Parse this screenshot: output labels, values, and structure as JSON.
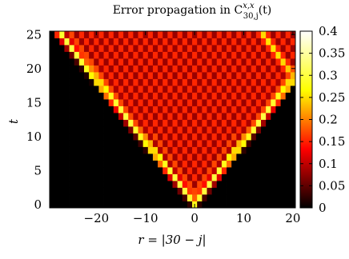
{
  "chart_data": {
    "type": "heatmap",
    "title": "Error propagation in C",
    "title_superscript": "x,x",
    "title_subscript": "30,j",
    "title_suffix": "(t)",
    "xlabel": "r = |30 − j|",
    "ylabel": "t",
    "xlim": [
      -29.5,
      20.5
    ],
    "ylim": [
      -0.5,
      25.5
    ],
    "x_ticks": [
      {
        "value": -20,
        "label": "−20"
      },
      {
        "value": -10,
        "label": "−10"
      },
      {
        "value": 0,
        "label": "0"
      },
      {
        "value": 10,
        "label": "10"
      },
      {
        "value": 20,
        "label": "20"
      }
    ],
    "y_ticks": [
      {
        "value": 0,
        "label": "0"
      },
      {
        "value": 5,
        "label": "5"
      },
      {
        "value": 10,
        "label": "10"
      },
      {
        "value": 15,
        "label": "15"
      },
      {
        "value": 20,
        "label": "20"
      },
      {
        "value": 25,
        "label": "25"
      }
    ],
    "x_range": [
      -29,
      20
    ],
    "y_range": [
      0,
      25
    ],
    "colorbar": {
      "min": 0,
      "max": 0.4,
      "ticks": [
        {
          "value": 0,
          "label": "0"
        },
        {
          "value": 0.05,
          "label": "0.05"
        },
        {
          "value": 0.1,
          "label": "0.1"
        },
        {
          "value": 0.15,
          "label": "0.15"
        },
        {
          "value": 0.2,
          "label": "0.2"
        },
        {
          "value": 0.25,
          "label": "0.25"
        },
        {
          "value": 0.3,
          "label": "0.3"
        },
        {
          "value": 0.35,
          "label": "0.35"
        },
        {
          "value": 0.4,
          "label": "0.4"
        }
      ],
      "colormap": [
        "#000000",
        "#ff0000",
        "#ffff00",
        "#ffffff"
      ]
    },
    "pattern": {
      "light_cone_velocity": 1.1,
      "front_value": 0.3,
      "interior_even": 0.17,
      "interior_odd": 0.09,
      "outside_value": 0.0,
      "reflect_left": -29.5,
      "reflect_right": 20.5
    }
  }
}
